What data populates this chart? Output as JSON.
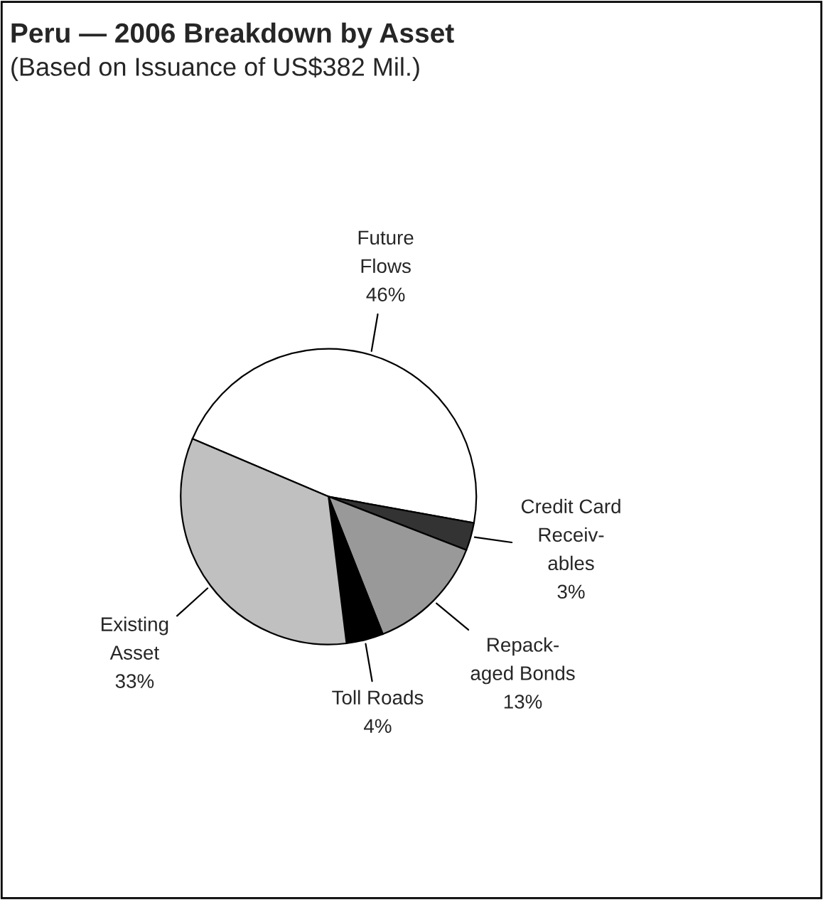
{
  "chart_data": {
    "type": "pie",
    "title": "Peru — 2006 Breakdown by Asset",
    "subtitle": "(Based on Issuance of US$382 Mil.)",
    "categories": [
      "Future\nFlows",
      "Credit Card\nReceiv-\nables",
      "Repack-\naged Bonds",
      "Toll Roads",
      "Existing\nAsset"
    ],
    "values": [
      46,
      3,
      13,
      4,
      33
    ],
    "colors": [
      "#ffffff",
      "#333333",
      "#999999",
      "#000000",
      "#c0c0c0"
    ],
    "value_labels": [
      "46%",
      "3%",
      "13%",
      "4%",
      "33%"
    ],
    "legend": false
  }
}
